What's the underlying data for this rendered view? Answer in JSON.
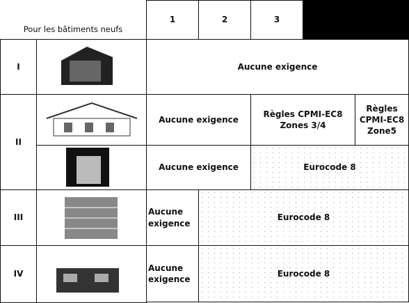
{
  "header": {
    "title": "Pour les bâtiments neufs",
    "zones": [
      "1",
      "2",
      "3"
    ]
  },
  "rows": [
    {
      "category": "I",
      "cells": [
        "Aucune exigence"
      ]
    },
    {
      "category": "II",
      "sub_rows": [
        {
          "cells": [
            "Aucune exigence",
            "Règles CPMI-EC8 Zones 3/4",
            "Règles CPMI-EC8 Zone5"
          ]
        },
        {
          "cells": [
            "Aucune exigence",
            "Eurocode 8"
          ]
        }
      ]
    },
    {
      "category": "III",
      "cells": [
        "Aucune exigence",
        "Eurocode 8"
      ]
    },
    {
      "category": "IV",
      "cells": [
        "Aucune exigence",
        "Eurocode 8"
      ]
    }
  ]
}
